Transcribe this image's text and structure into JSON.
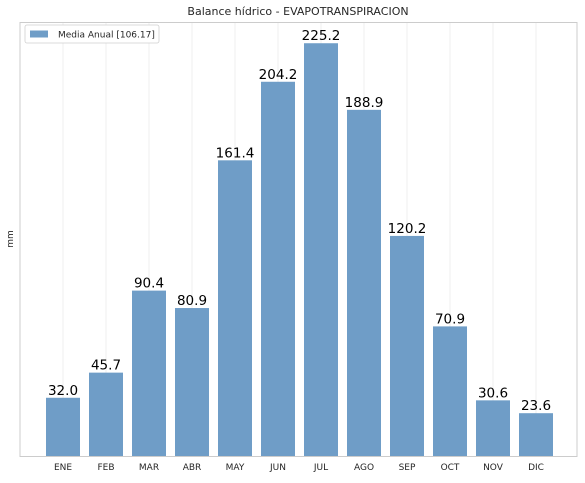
{
  "chart_data": {
    "type": "bar",
    "title": "Balance hídrico - EVAPOTRANSPIRACION",
    "xlabel": "",
    "ylabel": "mm",
    "categories": [
      "ENE",
      "FEB",
      "MAR",
      "ABR",
      "MAY",
      "JUN",
      "JUL",
      "AGO",
      "SEP",
      "OCT",
      "NOV",
      "DIC"
    ],
    "series": [
      {
        "name": "Media Anual [106.17]",
        "values": [
          32.0,
          45.7,
          90.4,
          80.9,
          161.4,
          204.2,
          225.2,
          188.9,
          120.2,
          70.9,
          30.6,
          23.6
        ],
        "labels": [
          "32.0",
          "45.7",
          "90.4",
          "80.9",
          "161.4",
          "204.2",
          "225.2",
          "188.9",
          "120.2",
          "70.9",
          "30.6",
          "23.6"
        ]
      }
    ],
    "ylim": [
      0,
      236.5
    ],
    "y_ticks_shown": false,
    "grid": "x-only",
    "legend_position": "top-left",
    "colors": {
      "bar": "#6f9dc7",
      "grid": "#ebebeb",
      "frame": "#cccccc",
      "label": "#000000",
      "text": "#262626"
    }
  }
}
